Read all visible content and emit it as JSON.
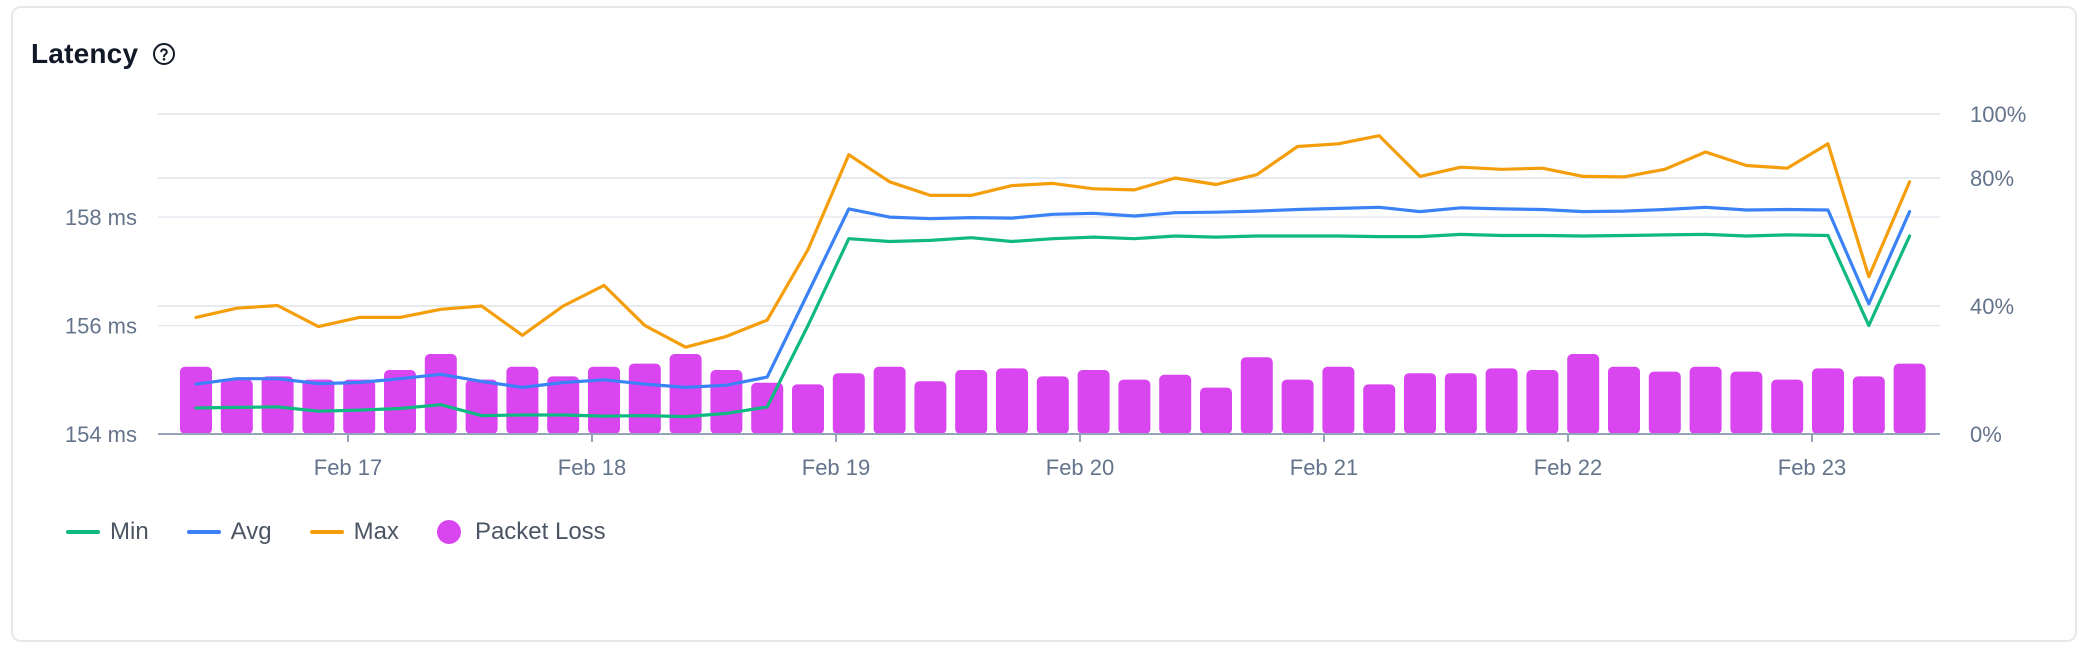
{
  "card": {
    "title": "Latency",
    "help_icon": "question-circle-icon"
  },
  "legend": [
    {
      "label": "Min",
      "color": "#10b981",
      "kind": "line"
    },
    {
      "label": "Avg",
      "color": "#3b82f6",
      "kind": "line"
    },
    {
      "label": "Max",
      "color": "#f59e0b",
      "kind": "line"
    },
    {
      "label": "Packet Loss",
      "color": "#d946ef",
      "kind": "dot"
    }
  ],
  "chart_data": {
    "type": "line",
    "x_ticks": [
      "Feb 17",
      "Feb 18",
      "Feb 19",
      "Feb 20",
      "Feb 21",
      "Feb 22",
      "Feb 23"
    ],
    "y_left_ticks": [
      "154 ms",
      "156 ms",
      "158 ms"
    ],
    "y_left_range": [
      154,
      159.9
    ],
    "y_right_ticks": [
      "0%",
      "40%",
      "80%",
      "100%"
    ],
    "y_right_range": [
      0,
      100
    ],
    "grid": true,
    "legend_position": "bottom-left",
    "series": [
      {
        "name": "Min",
        "color": "#10b981",
        "axis": "left",
        "values": [
          154.48,
          154.49,
          154.5,
          154.42,
          154.44,
          154.47,
          154.54,
          154.34,
          154.35,
          154.35,
          154.33,
          154.34,
          154.32,
          154.38,
          154.5,
          156.0,
          157.6,
          157.55,
          157.57,
          157.62,
          157.55,
          157.6,
          157.63,
          157.6,
          157.65,
          157.63,
          157.65,
          157.65,
          157.65,
          157.64,
          157.64,
          157.68,
          157.66,
          157.66,
          157.65,
          157.66,
          157.67,
          157.68,
          157.65,
          157.67,
          157.66,
          156.0,
          157.65
        ]
      },
      {
        "name": "Avg",
        "color": "#3b82f6",
        "axis": "left",
        "values": [
          154.92,
          155.02,
          155.02,
          154.93,
          154.95,
          155.02,
          155.1,
          154.97,
          154.86,
          154.95,
          155.0,
          154.92,
          154.86,
          154.9,
          155.05,
          156.6,
          158.15,
          158.0,
          157.97,
          157.99,
          157.98,
          158.05,
          158.07,
          158.02,
          158.08,
          158.09,
          158.11,
          158.14,
          158.16,
          158.18,
          158.1,
          158.17,
          158.15,
          158.14,
          158.1,
          158.11,
          158.14,
          158.18,
          158.13,
          158.14,
          158.13,
          156.4,
          158.1
        ]
      },
      {
        "name": "Max",
        "color": "#f59e0b",
        "axis": "left",
        "values": [
          156.15,
          156.32,
          156.37,
          155.98,
          156.15,
          156.15,
          156.3,
          156.36,
          155.82,
          156.36,
          156.74,
          156.0,
          155.6,
          155.8,
          156.1,
          157.4,
          159.15,
          158.65,
          158.4,
          158.4,
          158.58,
          158.62,
          158.52,
          158.5,
          158.72,
          158.6,
          158.78,
          159.3,
          159.35,
          159.5,
          158.75,
          158.92,
          158.88,
          158.9,
          158.75,
          158.74,
          158.88,
          159.2,
          158.95,
          158.9,
          159.35,
          156.9,
          158.65
        ]
      },
      {
        "name": "Packet Loss",
        "color": "#d946ef",
        "axis": "right",
        "kind": "bar",
        "values": [
          21,
          17,
          18,
          17,
          17,
          20,
          25,
          17,
          21,
          18,
          21,
          22,
          25,
          20,
          16,
          15.5,
          19,
          21,
          16.5,
          20,
          20.5,
          18,
          20,
          17,
          18.5,
          14.5,
          24,
          17,
          21,
          15.5,
          19,
          19,
          20.5,
          20,
          25,
          21,
          19.5,
          21,
          19.5,
          17,
          20.5,
          18,
          22
        ]
      }
    ]
  }
}
